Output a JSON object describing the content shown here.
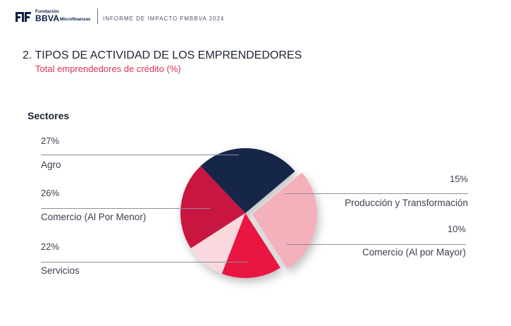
{
  "header": {
    "logo_top": "Fundación",
    "logo_main": "BBVA",
    "logo_sub": "Microfinanzas",
    "report_title": "INFORME DE IMPACTO FMBBVA 2024"
  },
  "section": {
    "title": "2. TIPOS DE ACTIVIDAD DE LOS EMPRENDEDORES",
    "subtitle": "Total emprendedores de crédito (%)",
    "sectors_label": "Sectores"
  },
  "chart_data": {
    "type": "pie",
    "title": "Sectores",
    "slices": [
      {
        "label": "Agro",
        "value": 27,
        "pct_text": "27%",
        "color": "#f4b0bb"
      },
      {
        "label": "Producción y Transformación",
        "value": 15,
        "pct_text": "15%",
        "color": "#e8163f"
      },
      {
        "label": "Comercio (Al por Mayor)",
        "value": 10,
        "pct_text": "10%",
        "color": "#f9d9de"
      },
      {
        "label": "Servicios",
        "value": 22,
        "pct_text": "22%",
        "color": "#c8193f"
      },
      {
        "label": "Comercio (Al Por Menor)",
        "value": 26,
        "pct_text": "26%",
        "color": "#14264a"
      }
    ]
  }
}
